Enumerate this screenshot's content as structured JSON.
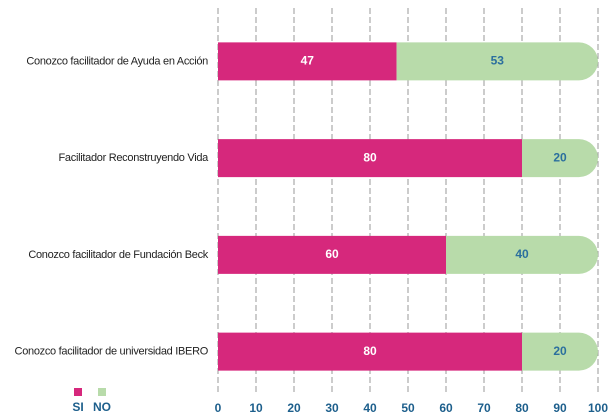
{
  "chart_data": {
    "type": "stacked-bar-horizontal",
    "categories": [
      "Conozco facilitador de Ayuda en Acción",
      "Facilitador Reconstruyendo Vida",
      "Conozco facilitador de Fundación Beck",
      "Conozco facilitador de universidad IBERO"
    ],
    "series": [
      {
        "name": "SI",
        "color": "#d6287c",
        "label_color": "#ffffff",
        "values": [
          47,
          80,
          60,
          80
        ]
      },
      {
        "name": "NO",
        "color": "#b8dbaa",
        "label_color": "#2b6f9e",
        "values": [
          53,
          20,
          40,
          20
        ]
      }
    ],
    "xlim": [
      0,
      100
    ],
    "xticks": [
      0,
      10,
      20,
      30,
      40,
      50,
      60,
      70,
      80,
      90,
      100
    ],
    "grid": true,
    "legend": "bottom-left"
  }
}
